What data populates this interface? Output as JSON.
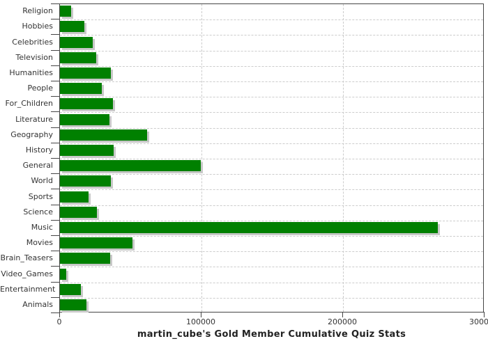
{
  "chart_data": {
    "type": "bar",
    "orientation": "horizontal",
    "title": "martin_cube's Gold Member Cumulative Quiz Stats",
    "xlabel": "",
    "ylabel": "",
    "xlim": [
      0,
      300000
    ],
    "xticks": [
      0,
      100000,
      200000,
      300000
    ],
    "xtick_labels": [
      "0",
      "100000",
      "200000",
      "300000"
    ],
    "grid": "dashed",
    "legend": "none",
    "bar_color": "#008000",
    "bar_shadow_color": "#c8c8c8",
    "grid_color": "#cccccc",
    "axis_color": "#444444",
    "text_color": "#333333",
    "categories": [
      "Religion",
      "Hobbies",
      "Celebrities",
      "Television",
      "Humanities",
      "People",
      "For_Children",
      "Literature",
      "Geography",
      "History",
      "General",
      "World",
      "Sports",
      "Science",
      "Music",
      "Movies",
      "Brain_Teasers",
      "Video_Games",
      "Entertainment",
      "Animals"
    ],
    "values": [
      8000,
      17000,
      23000,
      25500,
      36000,
      29500,
      37500,
      35000,
      61500,
      38000,
      99500,
      36000,
      20000,
      26000,
      267000,
      51000,
      35500,
      4500,
      15000,
      18500
    ]
  }
}
